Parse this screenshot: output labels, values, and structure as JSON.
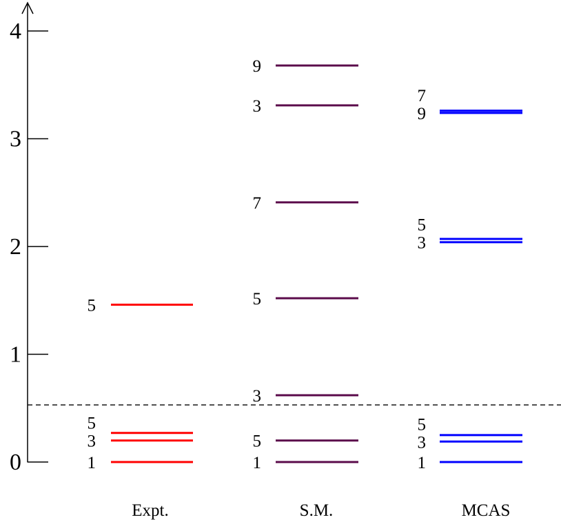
{
  "chart_data": {
    "type": "level_scheme",
    "y_range": [
      0,
      4
    ],
    "y_ticks": [
      "0",
      "1",
      "2",
      "3",
      "4"
    ],
    "separation_threshold": 0.53,
    "columns": [
      {
        "name": "Expt.",
        "color": "#ff0000",
        "levels": [
          {
            "energy": 0.0,
            "label": "1"
          },
          {
            "energy": 0.2,
            "label": "3"
          },
          {
            "energy": 0.27,
            "label": "5"
          },
          {
            "energy": 1.46,
            "label": "5"
          }
        ]
      },
      {
        "name": "S.M.",
        "color": "#5a0a4a",
        "levels": [
          {
            "energy": 0.0,
            "label": "1"
          },
          {
            "energy": 0.2,
            "label": "5"
          },
          {
            "energy": 0.62,
            "label": "3"
          },
          {
            "energy": 1.52,
            "label": "5"
          },
          {
            "energy": 2.41,
            "label": "7"
          },
          {
            "energy": 3.31,
            "label": "3"
          },
          {
            "energy": 3.68,
            "label": "9"
          }
        ]
      },
      {
        "name": "MCAS",
        "color": "#0000ff",
        "levels": [
          {
            "energy": 0.0,
            "label": "1"
          },
          {
            "energy": 0.19,
            "label": "3"
          },
          {
            "energy": 0.25,
            "label": "5"
          },
          {
            "energy": 2.04,
            "label": "3"
          },
          {
            "energy": 2.07,
            "label": "5"
          },
          {
            "energy": 3.24,
            "label": "9"
          },
          {
            "energy": 3.26,
            "label": "7"
          }
        ]
      }
    ]
  }
}
